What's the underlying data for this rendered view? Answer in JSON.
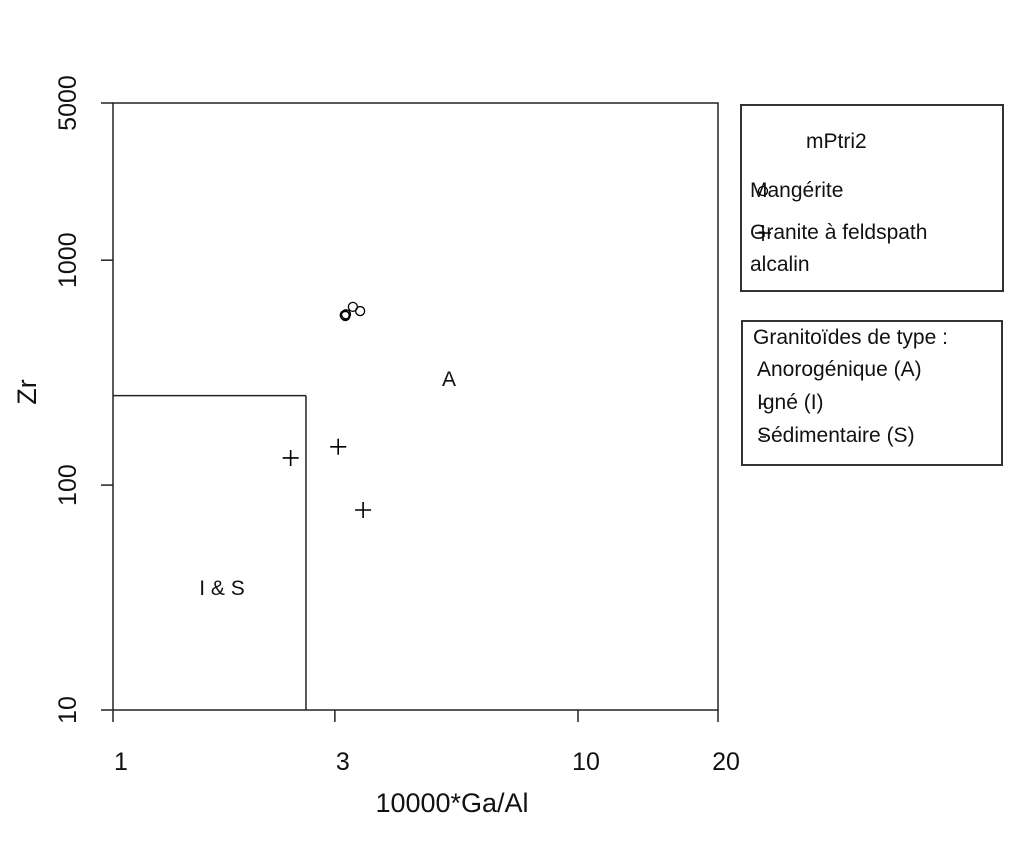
{
  "chart_data": {
    "type": "scatter",
    "xlabel": "10000*Ga/Al",
    "ylabel": "Zr",
    "xscale": "log",
    "yscale": "log",
    "xlim": [
      1,
      20
    ],
    "ylim": [
      10,
      5000
    ],
    "xticks": [
      1,
      3,
      10,
      20
    ],
    "yticks": [
      10,
      100,
      1000,
      5000
    ],
    "boundary": {
      "x": 2.6,
      "y": 250
    },
    "annotations": [
      "I & S",
      "A"
    ],
    "legend_title": "mPtri2",
    "series": [
      {
        "name": "Mangérite",
        "marker": "circle",
        "color": "#000000",
        "x": [
          3.15,
          3.17,
          3.28,
          3.4,
          3.16
        ],
        "y": [
          570,
          575,
          620,
          594,
          565
        ]
      },
      {
        "name": "Granite à feldspath alcalin",
        "marker": "plus",
        "color": "#000000",
        "x": [
          2.41,
          3.05,
          3.45
        ],
        "y": [
          132,
          148,
          77.5
        ]
      }
    ],
    "legend_note": {
      "title": "Granitoïdes de type :",
      "items": [
        "Anorogénique (A)",
        "Igné (I)",
        "Sédimentaire (S)"
      ]
    }
  }
}
